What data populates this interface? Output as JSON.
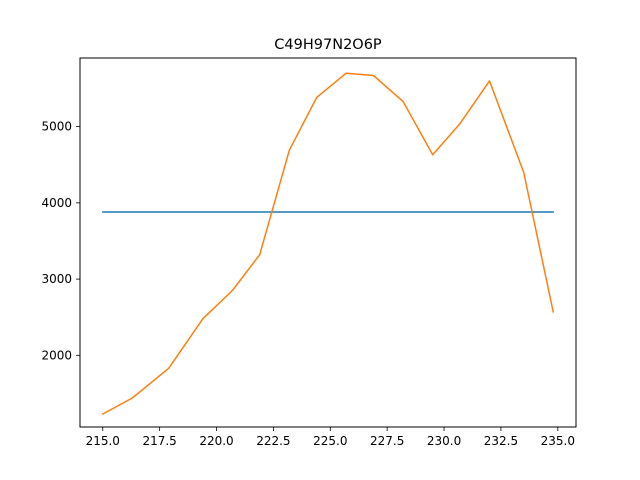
{
  "chart_data": {
    "type": "line",
    "title": "C49H97N2O6P",
    "xlabel": "",
    "ylabel": "",
    "xlim": [
      214.0,
      235.8
    ],
    "ylim": [
      1060,
      5900
    ],
    "xticks": [
      215.0,
      217.5,
      220.0,
      222.5,
      225.0,
      227.5,
      230.0,
      232.5,
      235.0
    ],
    "xtick_labels": [
      "215.0",
      "217.5",
      "220.0",
      "222.5",
      "225.0",
      "227.5",
      "230.0",
      "232.5",
      "235.0"
    ],
    "yticks": [
      2000,
      3000,
      4000,
      5000
    ],
    "ytick_labels": [
      "2000",
      "3000",
      "4000",
      "5000"
    ],
    "grid": false,
    "series": [
      {
        "color": "#1f77b4",
        "x": [
          215.0,
          234.8
        ],
        "y": [
          3880,
          3880
        ]
      },
      {
        "color": "#ff7f0e",
        "x": [
          215.0,
          216.3,
          217.9,
          219.4,
          220.7,
          221.9,
          223.2,
          224.4,
          225.7,
          226.9,
          228.2,
          229.5,
          230.7,
          232.0,
          233.5,
          234.8
        ],
        "y": [
          1230,
          1440,
          1830,
          2480,
          2850,
          3320,
          4690,
          5380,
          5700,
          5670,
          5330,
          4630,
          5040,
          5600,
          4400,
          2570
        ]
      }
    ]
  }
}
